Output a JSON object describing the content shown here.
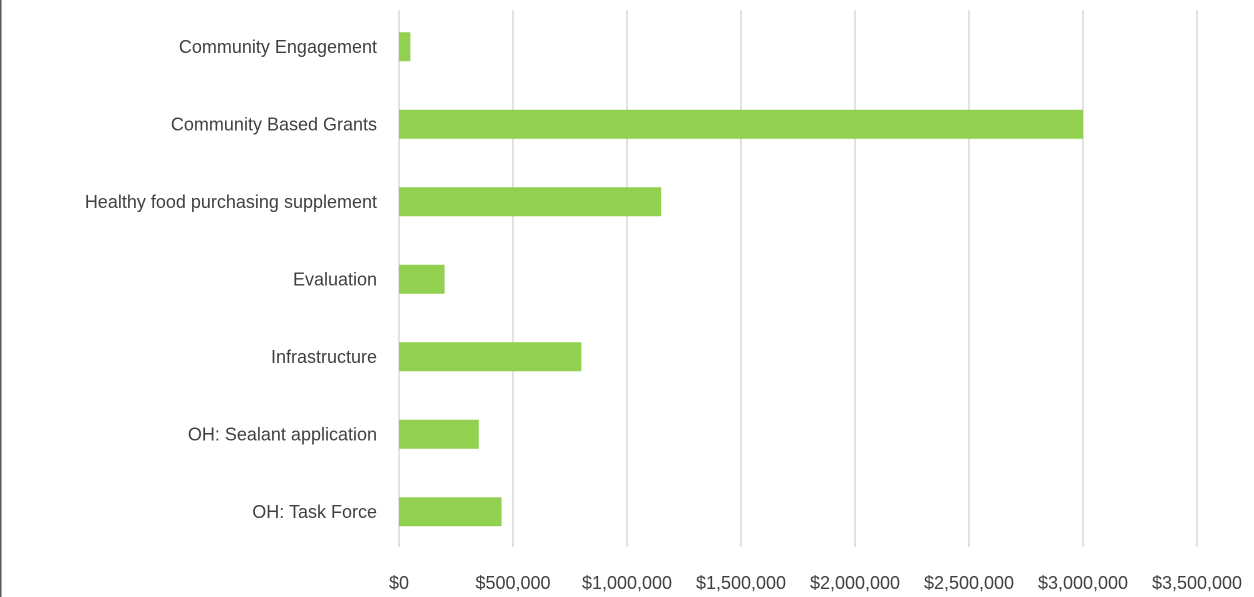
{
  "chart_data": {
    "type": "bar",
    "orientation": "horizontal",
    "title": "",
    "xlabel": "",
    "ylabel": "",
    "categories": [
      "Community Engagement",
      "Community Based Grants",
      "Healthy food purchasing supplement",
      "Evaluation",
      "Infrastructure",
      "OH: Sealant application",
      "OH: Task Force"
    ],
    "values": [
      50000,
      3000000,
      1150000,
      200000,
      800000,
      350000,
      450000
    ],
    "xlim": [
      0,
      3500000
    ],
    "x_ticks": [
      0,
      500000,
      1000000,
      1500000,
      2000000,
      2500000,
      3000000,
      3500000
    ],
    "x_tick_labels": [
      "$0",
      "$500,000",
      "$1,000,000",
      "$1,500,000",
      "$2,000,000",
      "$2,500,000",
      "$3,000,000",
      "$3,500,000"
    ],
    "grid": "vertical",
    "legend": "none",
    "bar_color": "#92d050",
    "grid_color": "#d9d9d9",
    "text_color": "#404040"
  }
}
